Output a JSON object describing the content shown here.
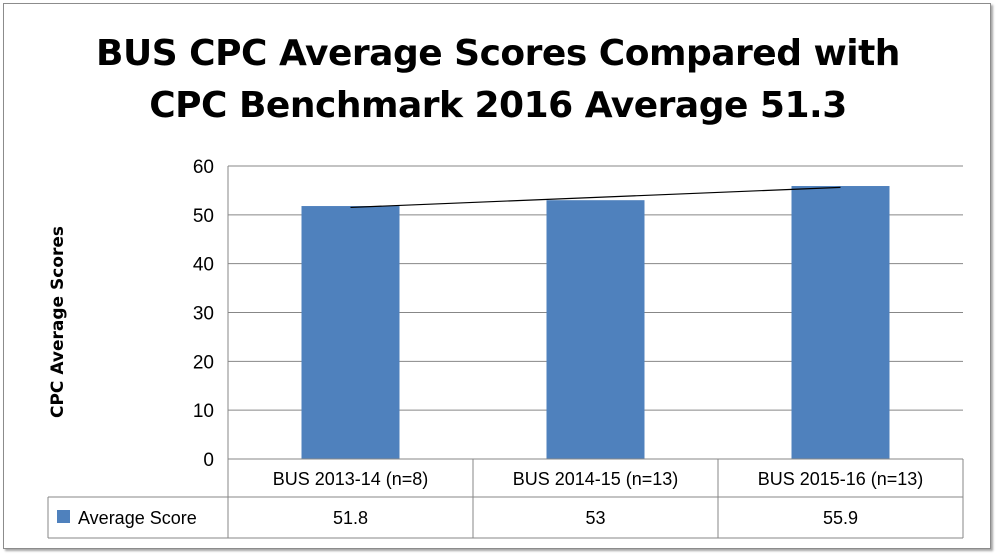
{
  "chart_data": {
    "type": "bar",
    "title_lines": [
      "BUS CPC Average Scores Compared with",
      "CPC Benchmark 2016 Average 51.3"
    ],
    "ylabel": "CPC Average Scores",
    "xlabel": "",
    "categories": [
      "BUS 2013-14 (n=8)",
      "BUS 2014-15 (n=13)",
      "BUS 2015-16 (n=13)"
    ],
    "series": [
      {
        "name": "Average Score",
        "values": [
          51.8,
          53,
          55.9
        ],
        "value_labels": [
          "51.8",
          "53",
          "55.9"
        ],
        "color": "#4f81bd"
      }
    ],
    "trendline": {
      "type": "linear",
      "color": "#000000"
    },
    "ylim": [
      0,
      60
    ],
    "yticks": [
      0,
      10,
      20,
      30,
      40,
      50,
      60
    ],
    "grid": true,
    "legend": "data-table"
  }
}
